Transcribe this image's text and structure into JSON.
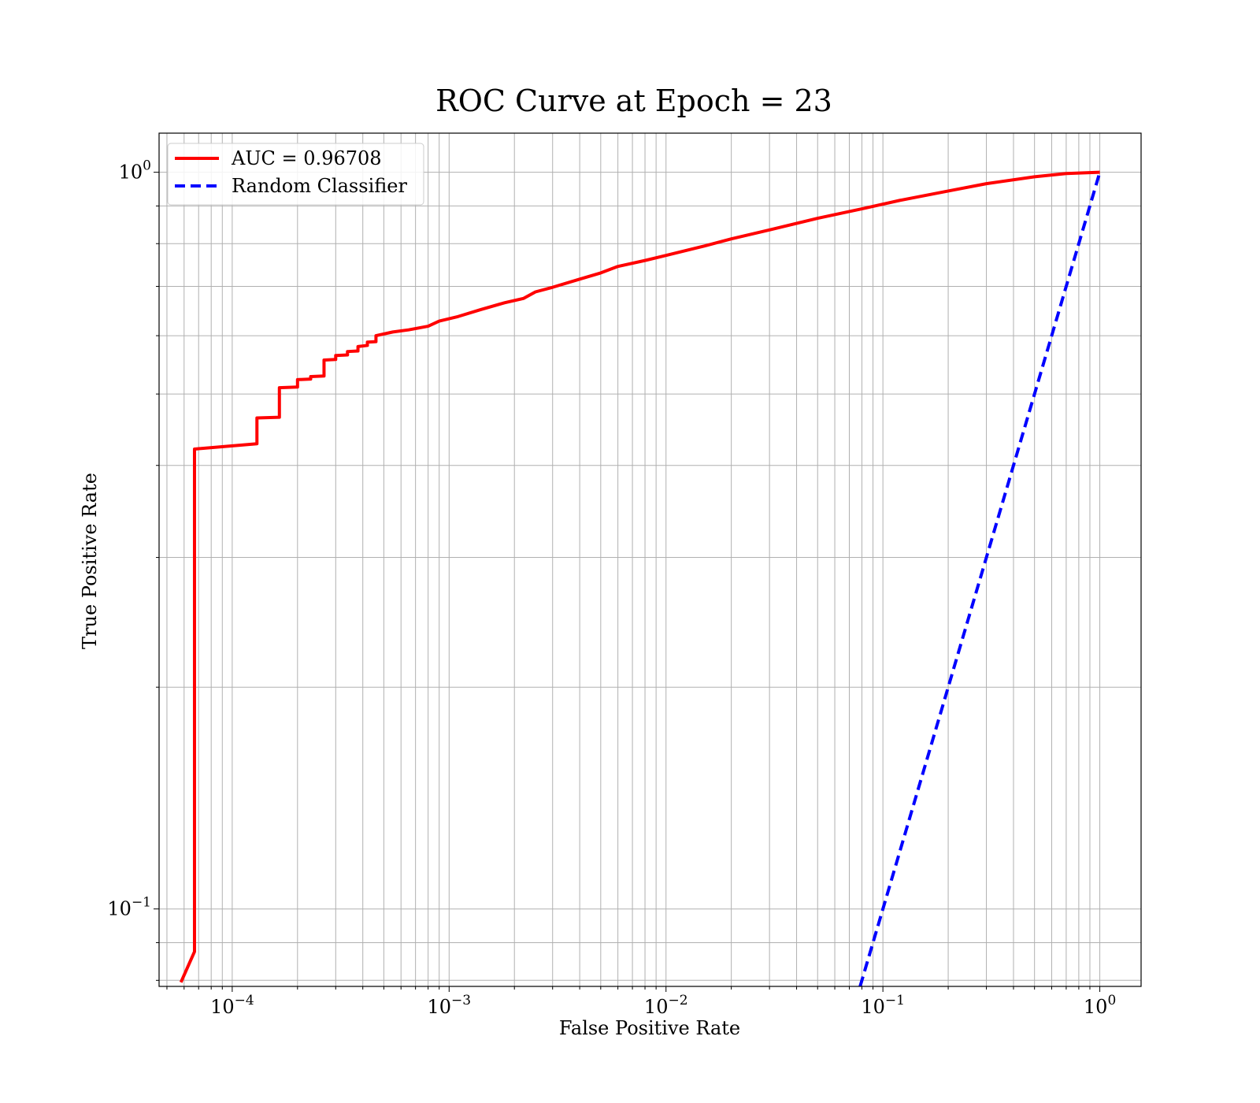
{
  "chart_data": {
    "type": "line",
    "title": "ROC Curve at Epoch = 23",
    "xlabel": "False Positive Rate",
    "ylabel": "True Positive Rate",
    "xscale": "log",
    "yscale": "log",
    "xlim": [
      4.6e-05,
      1.55
    ],
    "ylim": [
      0.0785,
      1.13
    ],
    "grid": "both major and minor",
    "legend_position": "upper-left",
    "x_ticks": [
      {
        "value": 0.0001,
        "base": "10",
        "exp": "−4"
      },
      {
        "value": 0.001,
        "base": "10",
        "exp": "−3"
      },
      {
        "value": 0.01,
        "base": "10",
        "exp": "−2"
      },
      {
        "value": 0.1,
        "base": "10",
        "exp": "−1"
      },
      {
        "value": 1,
        "base": "10",
        "exp": "0"
      }
    ],
    "y_ticks": [
      {
        "value": 0.1,
        "base": "10",
        "exp": "−1"
      },
      {
        "value": 1,
        "base": "10",
        "exp": "0"
      }
    ],
    "series": [
      {
        "name": "AUC = 0.96708",
        "color": "#ff0000",
        "style": "solid",
        "x": [
          5.8e-05,
          6.7e-05,
          6.7e-05,
          0.00013,
          0.00013,
          0.000165,
          0.000165,
          0.0002,
          0.0002,
          0.00023,
          0.00023,
          0.000265,
          0.000265,
          0.0003,
          0.0003,
          0.00034,
          0.00034,
          0.00038,
          0.00038,
          0.00042,
          0.00042,
          0.00046,
          0.00046,
          0.00055,
          0.00065,
          0.0008,
          0.0009,
          0.0011,
          0.0014,
          0.0018,
          0.0022,
          0.0025,
          0.003,
          0.004,
          0.005,
          0.006,
          0.008,
          0.01,
          0.015,
          0.02,
          0.03,
          0.05,
          0.08,
          0.12,
          0.2,
          0.3,
          0.5,
          0.7,
          1.0
        ],
        "y": [
          0.0795,
          0.0875,
          0.421,
          0.428,
          0.464,
          0.465,
          0.51,
          0.511,
          0.523,
          0.524,
          0.528,
          0.529,
          0.556,
          0.557,
          0.564,
          0.565,
          0.571,
          0.572,
          0.58,
          0.582,
          0.588,
          0.589,
          0.6,
          0.607,
          0.611,
          0.618,
          0.628,
          0.637,
          0.651,
          0.665,
          0.674,
          0.688,
          0.698,
          0.716,
          0.73,
          0.745,
          0.759,
          0.771,
          0.794,
          0.812,
          0.835,
          0.866,
          0.892,
          0.916,
          0.943,
          0.965,
          0.986,
          0.996,
          1.0
        ]
      },
      {
        "name": "Random Classifier",
        "color": "#0000ff",
        "style": "dashed",
        "x": [
          0.0785,
          1.0
        ],
        "y": [
          0.0785,
          1.0
        ]
      }
    ]
  }
}
